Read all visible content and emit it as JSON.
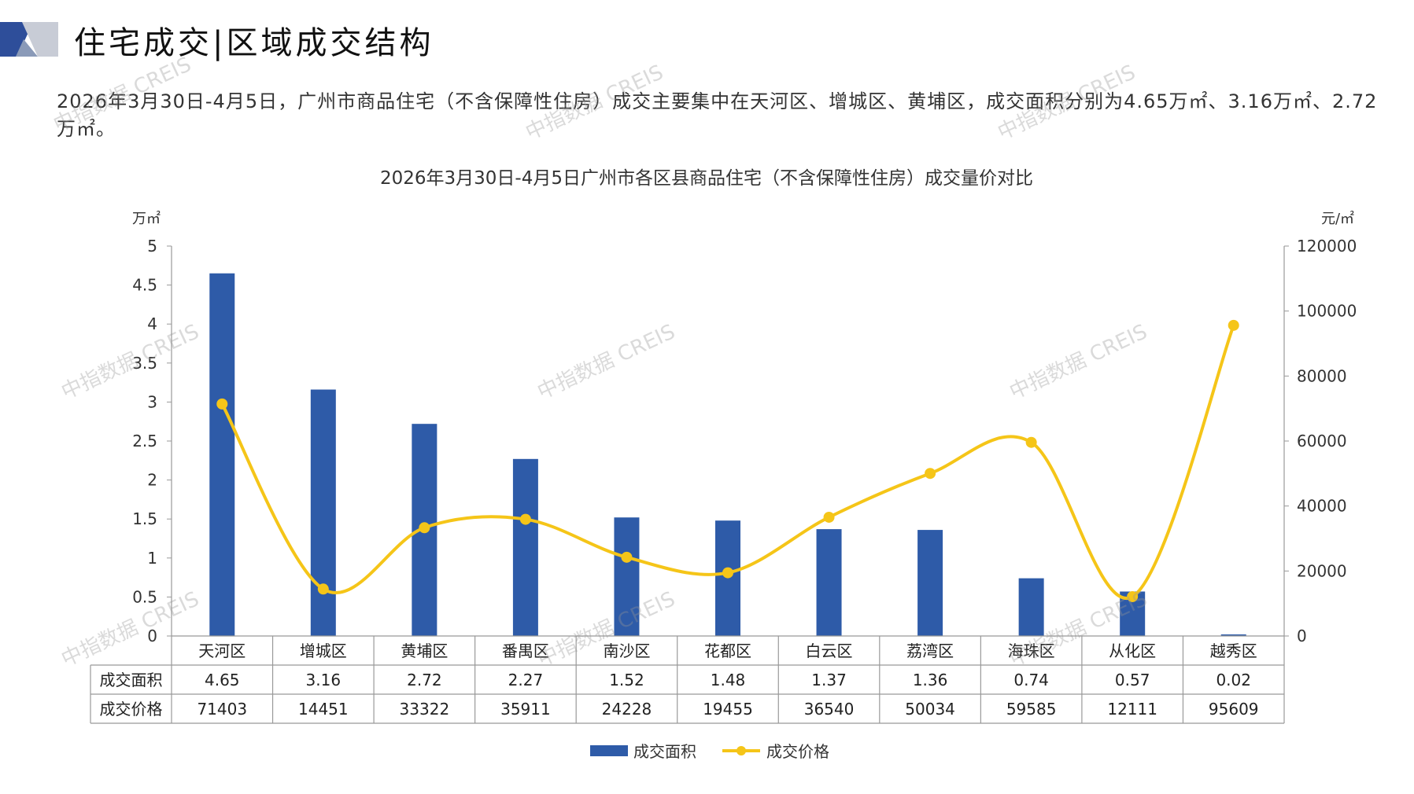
{
  "header": {
    "title": "住宅成交|区域成交结构"
  },
  "summary": "2026年3月30日-4月5日，广州市商品住宅（不含保障性住房）成交主要集中在天河区、增城区、黄埔区，成交面积分别为4.65万㎡、3.16万㎡、2.72万㎡。",
  "watermark_text": "中指数据 CREIS",
  "chart_data": {
    "type": "bar",
    "title": "2026年3月30日-4月5日广州市各区县商品住宅（不含保障性住房）成交量价对比",
    "categories": [
      "天河区",
      "增城区",
      "黄埔区",
      "番禺区",
      "南沙区",
      "花都区",
      "白云区",
      "荔湾区",
      "海珠区",
      "从化区",
      "越秀区"
    ],
    "y_left_unit": "万㎡",
    "y_right_unit": "元/㎡",
    "y_left_lim": [
      0,
      5
    ],
    "y_left_ticks": [
      "0",
      "0.5",
      "1",
      "1.5",
      "2",
      "2.5",
      "3",
      "3.5",
      "4",
      "4.5",
      "5"
    ],
    "y_right_lim": [
      0,
      120000
    ],
    "y_right_ticks": [
      "0",
      "20000",
      "40000",
      "60000",
      "80000",
      "100000",
      "120000"
    ],
    "series": [
      {
        "name": "成交面积",
        "type": "bar",
        "color": "#2E5BA8",
        "axis": "left",
        "values": [
          4.65,
          3.16,
          2.72,
          2.27,
          1.52,
          1.48,
          1.37,
          1.36,
          0.74,
          0.57,
          0.02
        ],
        "labels": [
          "4.65",
          "3.16",
          "2.72",
          "2.27",
          "1.52",
          "1.48",
          "1.37",
          "1.36",
          "0.74",
          "0.57",
          "0.02"
        ]
      },
      {
        "name": "成交价格",
        "type": "line",
        "color": "#F5C518",
        "axis": "right",
        "values": [
          71403,
          14451,
          33322,
          35911,
          24228,
          19455,
          36540,
          50034,
          59585,
          12111,
          95609
        ],
        "labels": [
          "71403",
          "14451",
          "33322",
          "35911",
          "24228",
          "19455",
          "36540",
          "50034",
          "59585",
          "12111",
          "95609"
        ]
      }
    ],
    "grid": false,
    "legend_position": "bottom-center",
    "data_table": true
  }
}
